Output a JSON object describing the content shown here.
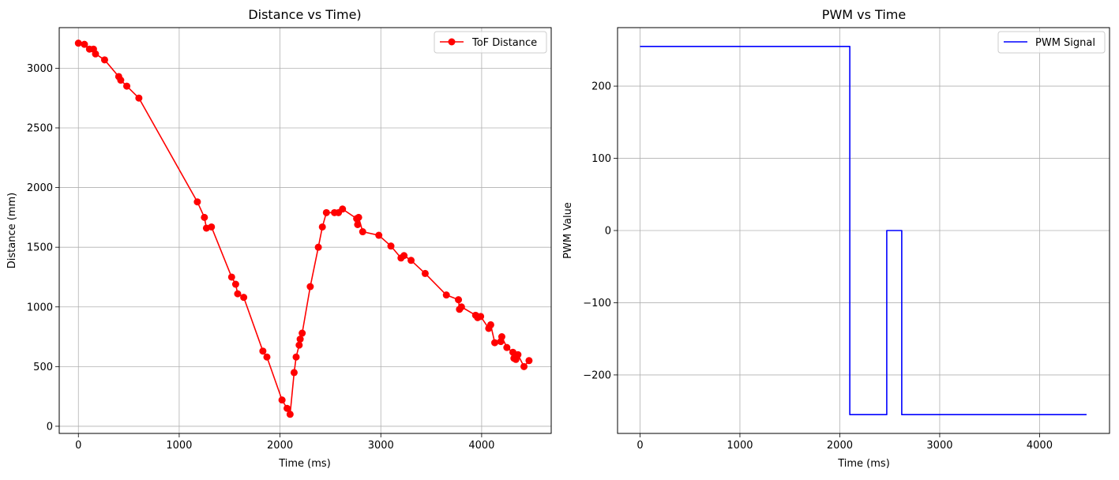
{
  "chart_data": [
    {
      "type": "line",
      "title": "Distance vs Time)",
      "xlabel": "Time (ms)",
      "ylabel": "Distance (mm)",
      "xlim": [
        -190,
        4690
      ],
      "ylim": [
        -60,
        3340
      ],
      "xticks": [
        0,
        1000,
        2000,
        3000,
        4000
      ],
      "yticks": [
        0,
        500,
        1000,
        1500,
        2000,
        2500,
        3000
      ],
      "grid": true,
      "legend_position": "upper right",
      "series": [
        {
          "name": "ToF Distance",
          "color": "#ff0000",
          "marker": "circle",
          "x": [
            0,
            60,
            110,
            150,
            170,
            260,
            400,
            420,
            480,
            600,
            1180,
            1250,
            1270,
            1320,
            1520,
            1560,
            1580,
            1640,
            1830,
            1870,
            2020,
            2070,
            2100,
            2140,
            2160,
            2190,
            2200,
            2220,
            2300,
            2380,
            2420,
            2460,
            2540,
            2580,
            2620,
            2760,
            2770,
            2780,
            2820,
            2980,
            3100,
            3200,
            3230,
            3300,
            3440,
            3650,
            3770,
            3780,
            3800,
            3940,
            3960,
            3990,
            4070,
            4090,
            4130,
            4190,
            4200,
            4250,
            4310,
            4320,
            4340,
            4360,
            4420,
            4470
          ],
          "y": [
            3210,
            3200,
            3160,
            3160,
            3120,
            3070,
            2930,
            2900,
            2850,
            2750,
            1880,
            1750,
            1660,
            1670,
            1250,
            1190,
            1110,
            1080,
            630,
            580,
            220,
            150,
            100,
            450,
            580,
            680,
            730,
            780,
            1170,
            1500,
            1670,
            1790,
            1790,
            1790,
            1820,
            1740,
            1690,
            1750,
            1630,
            1600,
            1510,
            1410,
            1430,
            1390,
            1280,
            1100,
            1060,
            980,
            1000,
            930,
            910,
            920,
            820,
            850,
            700,
            710,
            750,
            660,
            620,
            570,
            560,
            600,
            500,
            550
          ]
        }
      ]
    },
    {
      "type": "line",
      "title": "PWM vs Time",
      "xlabel": "Time (ms)",
      "ylabel": "PWM Value",
      "xlim": [
        -225,
        4700
      ],
      "ylim": [
        -281,
        281
      ],
      "xticks": [
        0,
        1000,
        2000,
        3000,
        4000
      ],
      "yticks": [
        -200,
        -100,
        0,
        100,
        200
      ],
      "grid": true,
      "legend_position": "upper right",
      "series": [
        {
          "name": "PWM Signal",
          "color": "#0000ff",
          "marker": "none",
          "x": [
            0,
            2100,
            2100,
            2470,
            2470,
            2620,
            2620,
            4470
          ],
          "y": [
            255,
            255,
            -255,
            -255,
            0,
            0,
            -255,
            -255
          ]
        }
      ]
    }
  ]
}
